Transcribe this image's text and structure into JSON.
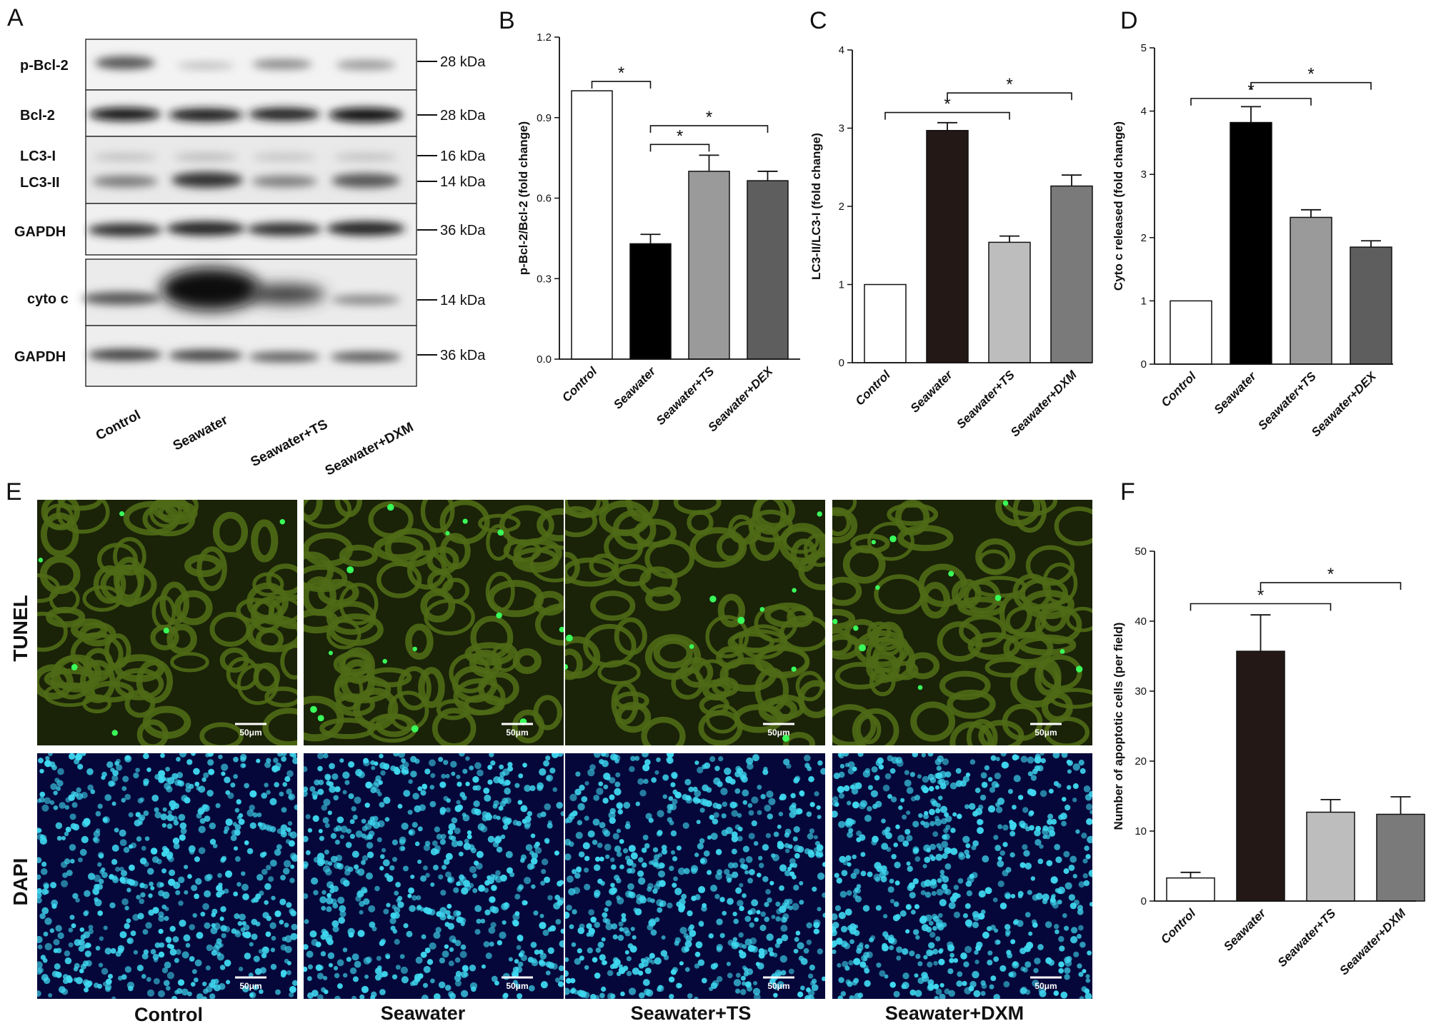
{
  "panels": {
    "A": "A",
    "B": "B",
    "C": "C",
    "D": "D",
    "E": "E",
    "F": "F"
  },
  "blot": {
    "rows": [
      {
        "label": "p-Bcl-2",
        "kda": [
          "28 kDa"
        ]
      },
      {
        "label": "Bcl-2",
        "kda": [
          "28 kDa"
        ]
      },
      {
        "label": "LC3-I",
        "kda": [
          "16 kDa"
        ]
      },
      {
        "label": "LC3-II",
        "kda": [
          "14 kDa"
        ]
      },
      {
        "label": "GAPDH",
        "kda": [
          "36 kDa"
        ]
      },
      {
        "label": "cyto c",
        "kda": [
          "14 kDa"
        ]
      },
      {
        "label": "GAPDH",
        "kda": [
          "36 kDa"
        ]
      }
    ],
    "lanes": [
      "Control",
      "Seawater",
      "Seawater+TS",
      "Seawater+DXM"
    ]
  },
  "microscopy": {
    "row_labels": [
      "TUNEL",
      "DAPI"
    ],
    "column_labels": [
      "Control",
      "Seawater",
      "Seawater+TS",
      "Seawater+DXM"
    ],
    "scale_bar": "50μm",
    "colors": {
      "tunel_bg": "#1a2208",
      "tunel_tissue": "#4f6a16",
      "tunel_positive": "#39ff5a",
      "dapi_bg": "#05073a",
      "dapi_nuclei": "#3fd8f0"
    }
  },
  "chart_data": [
    {
      "type": "bar",
      "panel": "B",
      "categories": [
        "Control",
        "Seawater",
        "Seawater+TS",
        "Seawater+DEX"
      ],
      "values": [
        1.0,
        0.43,
        0.7,
        0.665
      ],
      "errors": [
        0,
        0.035,
        0.06,
        0.035
      ],
      "ylabel": "p-Bcl-2/Bcl-2 (fold change)",
      "ylim": [
        0,
        1.2
      ],
      "yticks": [
        "0.0",
        "0.3",
        "0.6",
        "0.9",
        "1.2"
      ],
      "tick_values": [
        0,
        0.3,
        0.6,
        0.9,
        1.2
      ],
      "bar_colors": [
        "#ffffff",
        "#000000",
        "#9a9a9a",
        "#5e5e5e"
      ],
      "significance": [
        {
          "from": 0,
          "to": 1,
          "y": 1.035,
          "label": "*"
        },
        {
          "from": 1,
          "to": 2,
          "y": 0.8,
          "label": "*"
        },
        {
          "from": 1,
          "to": 3,
          "y": 0.87,
          "label": "*"
        }
      ]
    },
    {
      "type": "bar",
      "panel": "C",
      "categories": [
        "Control",
        "Seawater",
        "Seawater+TS",
        "Seawater+DXM"
      ],
      "values": [
        1.0,
        2.97,
        1.54,
        2.26
      ],
      "errors": [
        0,
        0.1,
        0.08,
        0.14
      ],
      "ylabel": "LC3-II/LC3-I (fold change)",
      "ylim": [
        0,
        4
      ],
      "yticks": [
        "0",
        "1",
        "2",
        "3",
        "4"
      ],
      "tick_values": [
        0,
        1,
        2,
        3,
        4
      ],
      "bar_colors": [
        "#ffffff",
        "#231815",
        "#bdbdbd",
        "#7a7a7a"
      ],
      "significance": [
        {
          "from": 0,
          "to": 2,
          "y": 3.2,
          "label": "*"
        },
        {
          "from": 1,
          "to": 2,
          "y": 3.2,
          "label": "*",
          "hidden": true
        },
        {
          "from": 1,
          "to": 3,
          "y": 3.45,
          "label": "*"
        }
      ]
    },
    {
      "type": "bar",
      "panel": "D",
      "categories": [
        "Control",
        "Seawater",
        "Seawater+TS",
        "Seawater+DEX"
      ],
      "values": [
        1.0,
        3.82,
        2.32,
        1.85
      ],
      "errors": [
        0,
        0.25,
        0.12,
        0.1
      ],
      "ylabel": "Cyto c released (fold change)",
      "ylim": [
        0,
        5
      ],
      "yticks": [
        "0",
        "1",
        "2",
        "3",
        "4",
        "5"
      ],
      "tick_values": [
        0,
        1,
        2,
        3,
        4,
        5
      ],
      "bar_colors": [
        "#ffffff",
        "#000000",
        "#9a9a9a",
        "#5e5e5e"
      ],
      "significance": [
        {
          "from": 0,
          "to": 2,
          "y": 4.2,
          "label": "*"
        },
        {
          "from": 1,
          "to": 3,
          "y": 4.45,
          "label": "*"
        }
      ]
    },
    {
      "type": "bar",
      "panel": "F",
      "categories": [
        "Control",
        "Seawater",
        "Seawater+TS",
        "Seawater+DXM"
      ],
      "values": [
        3.3,
        35.7,
        12.7,
        12.4
      ],
      "errors": [
        0.8,
        5.2,
        1.8,
        2.5
      ],
      "ylabel": "Number of apoptotic cells (per field)",
      "ylim": [
        0,
        50
      ],
      "yticks": [
        "0",
        "10",
        "20",
        "30",
        "40",
        "50"
      ],
      "tick_values": [
        0,
        10,
        20,
        30,
        40,
        50
      ],
      "bar_colors": [
        "#ffffff",
        "#231815",
        "#bdbdbd",
        "#7a7a7a"
      ],
      "significance": [
        {
          "from": 0,
          "to": 2,
          "y": 42.5,
          "label": "*"
        },
        {
          "from": 1,
          "to": 3,
          "y": 45.5,
          "label": "*"
        }
      ]
    }
  ]
}
